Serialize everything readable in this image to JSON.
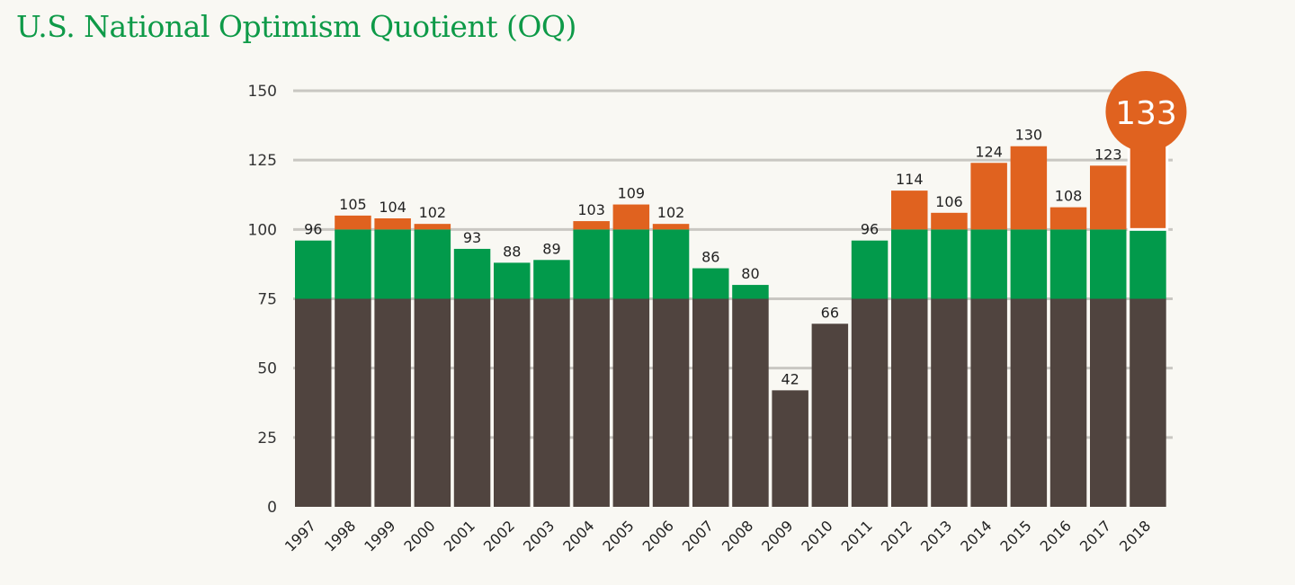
{
  "title": "U.S. National Optimism Quotient (OQ)",
  "colors": {
    "title": "#0e9a48",
    "base": "#50443f",
    "mid": "#029a4b",
    "top": "#e0621f",
    "grid": "#c9c7c2",
    "highlight": "#e0621f"
  },
  "chart_data": {
    "type": "bar",
    "title": "U.S. National Optimism Quotient (OQ)",
    "xlabel": "",
    "ylabel": "",
    "ylim": [
      0,
      150
    ],
    "yticks": [
      0,
      25,
      50,
      75,
      100,
      125,
      150
    ],
    "grid": true,
    "color_bands": [
      75,
      100
    ],
    "categories": [
      "1997",
      "1998",
      "1999",
      "2000",
      "2001",
      "2002",
      "2003",
      "2004",
      "2005",
      "2006",
      "2007",
      "2008",
      "2009",
      "2010",
      "2011",
      "2012",
      "2013",
      "2014",
      "2015",
      "2016",
      "2017",
      "2018"
    ],
    "values": [
      96,
      105,
      104,
      102,
      93,
      88,
      89,
      103,
      109,
      102,
      86,
      80,
      42,
      66,
      96,
      114,
      106,
      124,
      130,
      108,
      123,
      133
    ],
    "value_labels": [
      "96",
      "105",
      "104",
      "102",
      "93",
      "88",
      "89",
      "103",
      "109",
      "102",
      "86",
      "80",
      "42",
      "66",
      "96",
      "114",
      "106",
      "124",
      "130",
      "108",
      "123",
      ""
    ],
    "highlight": {
      "category": "2018",
      "label": "133"
    }
  }
}
